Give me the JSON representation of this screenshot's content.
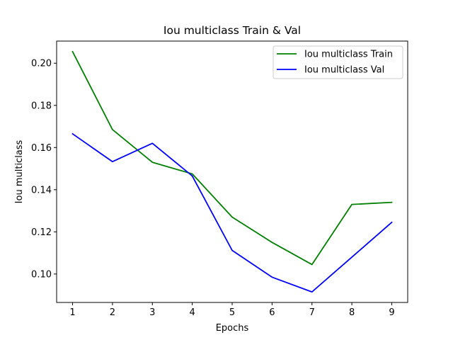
{
  "chart_data": {
    "type": "line",
    "title": "Iou multiclass Train & Val",
    "xlabel": "Epochs",
    "ylabel": "Iou multiclass",
    "x": [
      1,
      2,
      3,
      4,
      5,
      6,
      7,
      8,
      9
    ],
    "xticks": [
      "1",
      "2",
      "3",
      "4",
      "5",
      "6",
      "7",
      "8",
      "9"
    ],
    "yticks": [
      "0.10",
      "0.12",
      "0.14",
      "0.16",
      "0.18",
      "0.20"
    ],
    "xlim": [
      0.6,
      9.4
    ],
    "ylim": [
      0.0865,
      0.2105
    ],
    "grid": false,
    "legend_position": "top-right",
    "series": [
      {
        "name": "Iou multiclass Train",
        "color": "#008000",
        "values": [
          0.2055,
          0.1685,
          0.153,
          0.1475,
          0.127,
          0.115,
          0.1045,
          0.133,
          0.134
        ]
      },
      {
        "name": "Iou multiclass Val",
        "color": "#0000ff",
        "values": [
          0.1665,
          0.1533,
          0.162,
          0.1465,
          0.1112,
          0.0985,
          0.0915,
          0.108,
          0.1245
        ]
      }
    ]
  }
}
